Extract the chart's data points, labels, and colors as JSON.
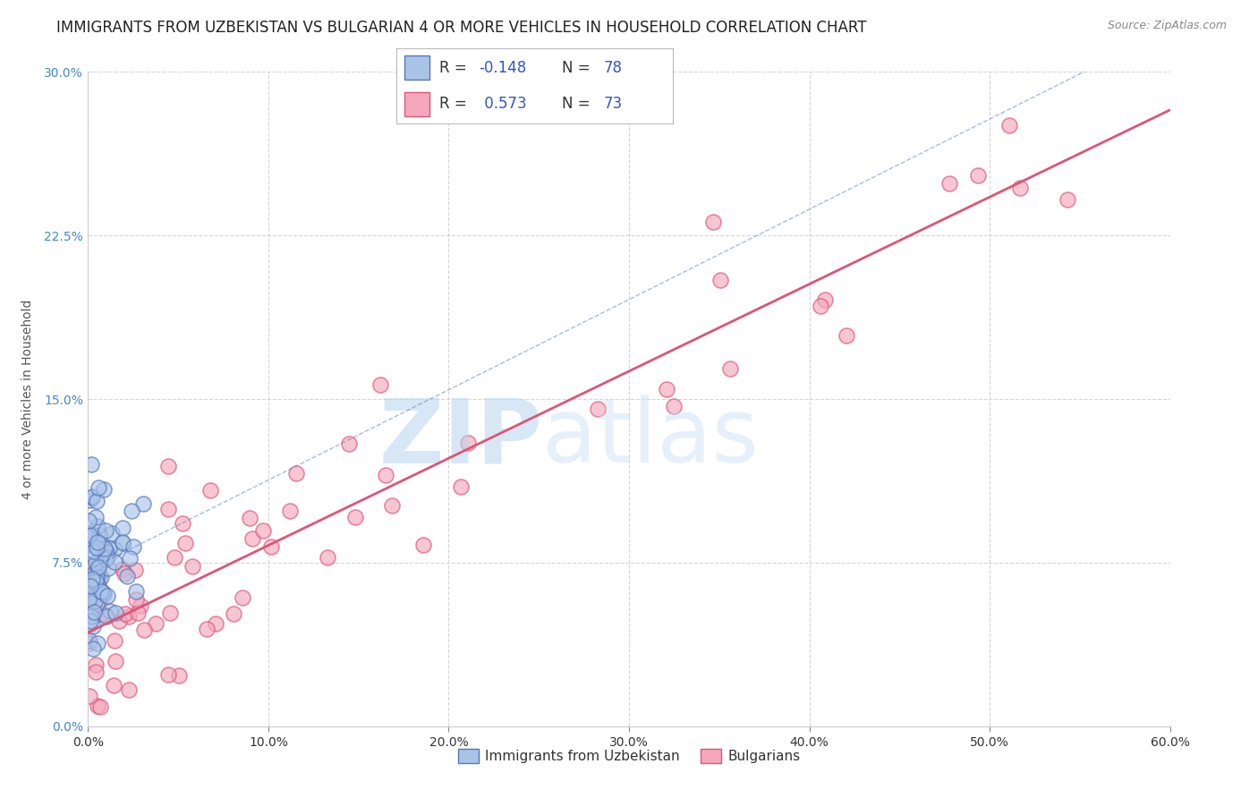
{
  "title": "IMMIGRANTS FROM UZBEKISTAN VS BULGARIAN 4 OR MORE VEHICLES IN HOUSEHOLD CORRELATION CHART",
  "source": "Source: ZipAtlas.com",
  "ylabel": "4 or more Vehicles in Household",
  "xlim": [
    0.0,
    0.6
  ],
  "ylim": [
    0.0,
    0.3
  ],
  "xticks": [
    0.0,
    0.1,
    0.2,
    0.3,
    0.4,
    0.5,
    0.6
  ],
  "xticklabels": [
    "0.0%",
    "10.0%",
    "20.0%",
    "30.0%",
    "40.0%",
    "50.0%",
    "60.0%"
  ],
  "yticks": [
    0.0,
    0.075,
    0.15,
    0.225,
    0.3
  ],
  "yticklabels": [
    "0.0%",
    "7.5%",
    "15.0%",
    "22.5%",
    "30.0%"
  ],
  "legend_labels": [
    "Immigrants from Uzbekistan",
    "Bulgarians"
  ],
  "series1_color": "#aac4e8",
  "series2_color": "#f5a8bc",
  "line1_color": "#5577bb",
  "line2_color": "#dd5577",
  "R1": -0.148,
  "N1": 78,
  "R2": 0.573,
  "N2": 73,
  "watermark_zip": "ZIP",
  "watermark_atlas": "atlas",
  "background_color": "#ffffff",
  "plot_bg_color": "#ffffff",
  "grid_color": "#cccccc",
  "title_fontsize": 12,
  "axis_label_fontsize": 10,
  "tick_fontsize": 10,
  "ytick_color": "#4488cc",
  "xtick_color": "#333333"
}
